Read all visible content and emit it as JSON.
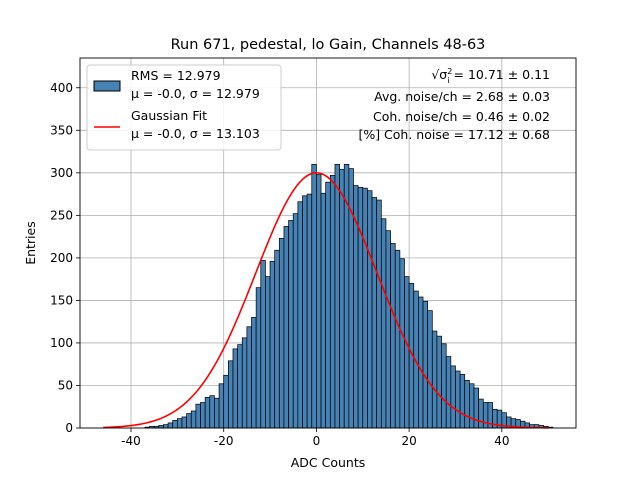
{
  "chart_data": {
    "type": "bar",
    "title": "Run 671, pedestal, lo Gain, Channels 48-63",
    "xlabel": "ADC Counts",
    "ylabel": "Entries",
    "xlim": [
      -51,
      56
    ],
    "ylim": [
      0,
      435
    ],
    "xticks": [
      -40,
      -20,
      0,
      20,
      40
    ],
    "yticks": [
      0,
      50,
      100,
      150,
      200,
      250,
      300,
      350,
      400
    ],
    "grid": true,
    "bin_start": -37,
    "bin_width": 1,
    "values": [
      1,
      2,
      2,
      3,
      4,
      6,
      9,
      11,
      13,
      17,
      20,
      28,
      30,
      36,
      38,
      35,
      52,
      62,
      79,
      93,
      98,
      106,
      119,
      130,
      165,
      197,
      178,
      196,
      209,
      223,
      237,
      244,
      252,
      266,
      273,
      275,
      310,
      298,
      276,
      289,
      297,
      310,
      304,
      310,
      305,
      285,
      283,
      282,
      279,
      271,
      268,
      246,
      232,
      217,
      209,
      199,
      178,
      170,
      161,
      154,
      149,
      138,
      114,
      108,
      99,
      84,
      73,
      67,
      63,
      56,
      52,
      47,
      34,
      30,
      30,
      22,
      21,
      18,
      13,
      11,
      10,
      8,
      6,
      4,
      4,
      3,
      2,
      1
    ],
    "series": [
      {
        "name": "RMS = 12.979",
        "sub": "μ = -0.0, σ = 12.979",
        "color": "#4682b4",
        "edge": "#000000"
      },
      {
        "name": "Gaussian Fit",
        "sub": "μ = -0.0, σ = 13.103",
        "color": "#ff0000",
        "mu": 0.0,
        "sigma": 13.103,
        "amplitude": 300,
        "range": [
          -46,
          50
        ]
      }
    ],
    "legend_position": "top-left",
    "annotations": [
      {
        "prefix": "√σ",
        "sup": "2",
        "sub": "i",
        "text": " = 10.71 ± 0.11"
      },
      {
        "text": "Avg. noise/ch = 2.68 ± 0.03"
      },
      {
        "text": "Coh. noise/ch = 0.46 ± 0.02"
      },
      {
        "text": "[%] Coh. noise = 17.12 ± 0.68"
      }
    ]
  }
}
